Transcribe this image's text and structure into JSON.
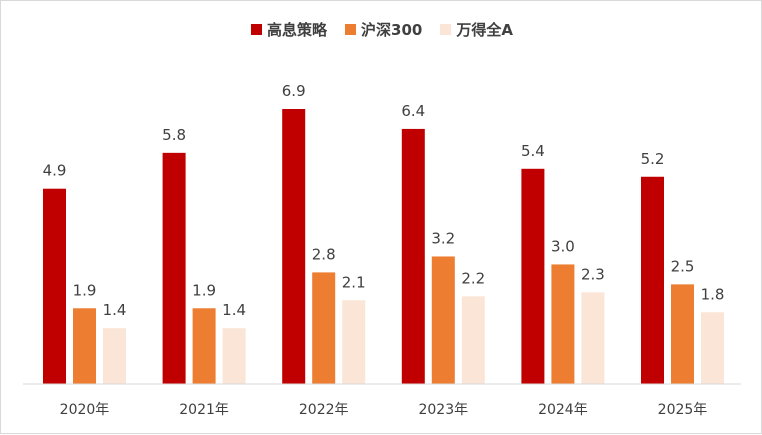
{
  "chart_data": {
    "type": "bar",
    "categories": [
      "2020年",
      "2021年",
      "2022年",
      "2023年",
      "2024年",
      "2025年"
    ],
    "series": [
      {
        "name": "高息策略",
        "color": "#c00000",
        "values": [
          4.9,
          5.8,
          6.9,
          6.4,
          5.4,
          5.2
        ]
      },
      {
        "name": "沪深300",
        "color": "#ed7d31",
        "values": [
          1.9,
          1.9,
          2.8,
          3.2,
          3.0,
          2.5
        ]
      },
      {
        "name": "万得全A",
        "color": "#fbe5d6",
        "values": [
          1.4,
          1.4,
          2.1,
          2.2,
          2.3,
          1.8
        ]
      }
    ],
    "ylim": [
      0,
      6.9
    ],
    "grid": false,
    "legend_position": "top-center"
  }
}
